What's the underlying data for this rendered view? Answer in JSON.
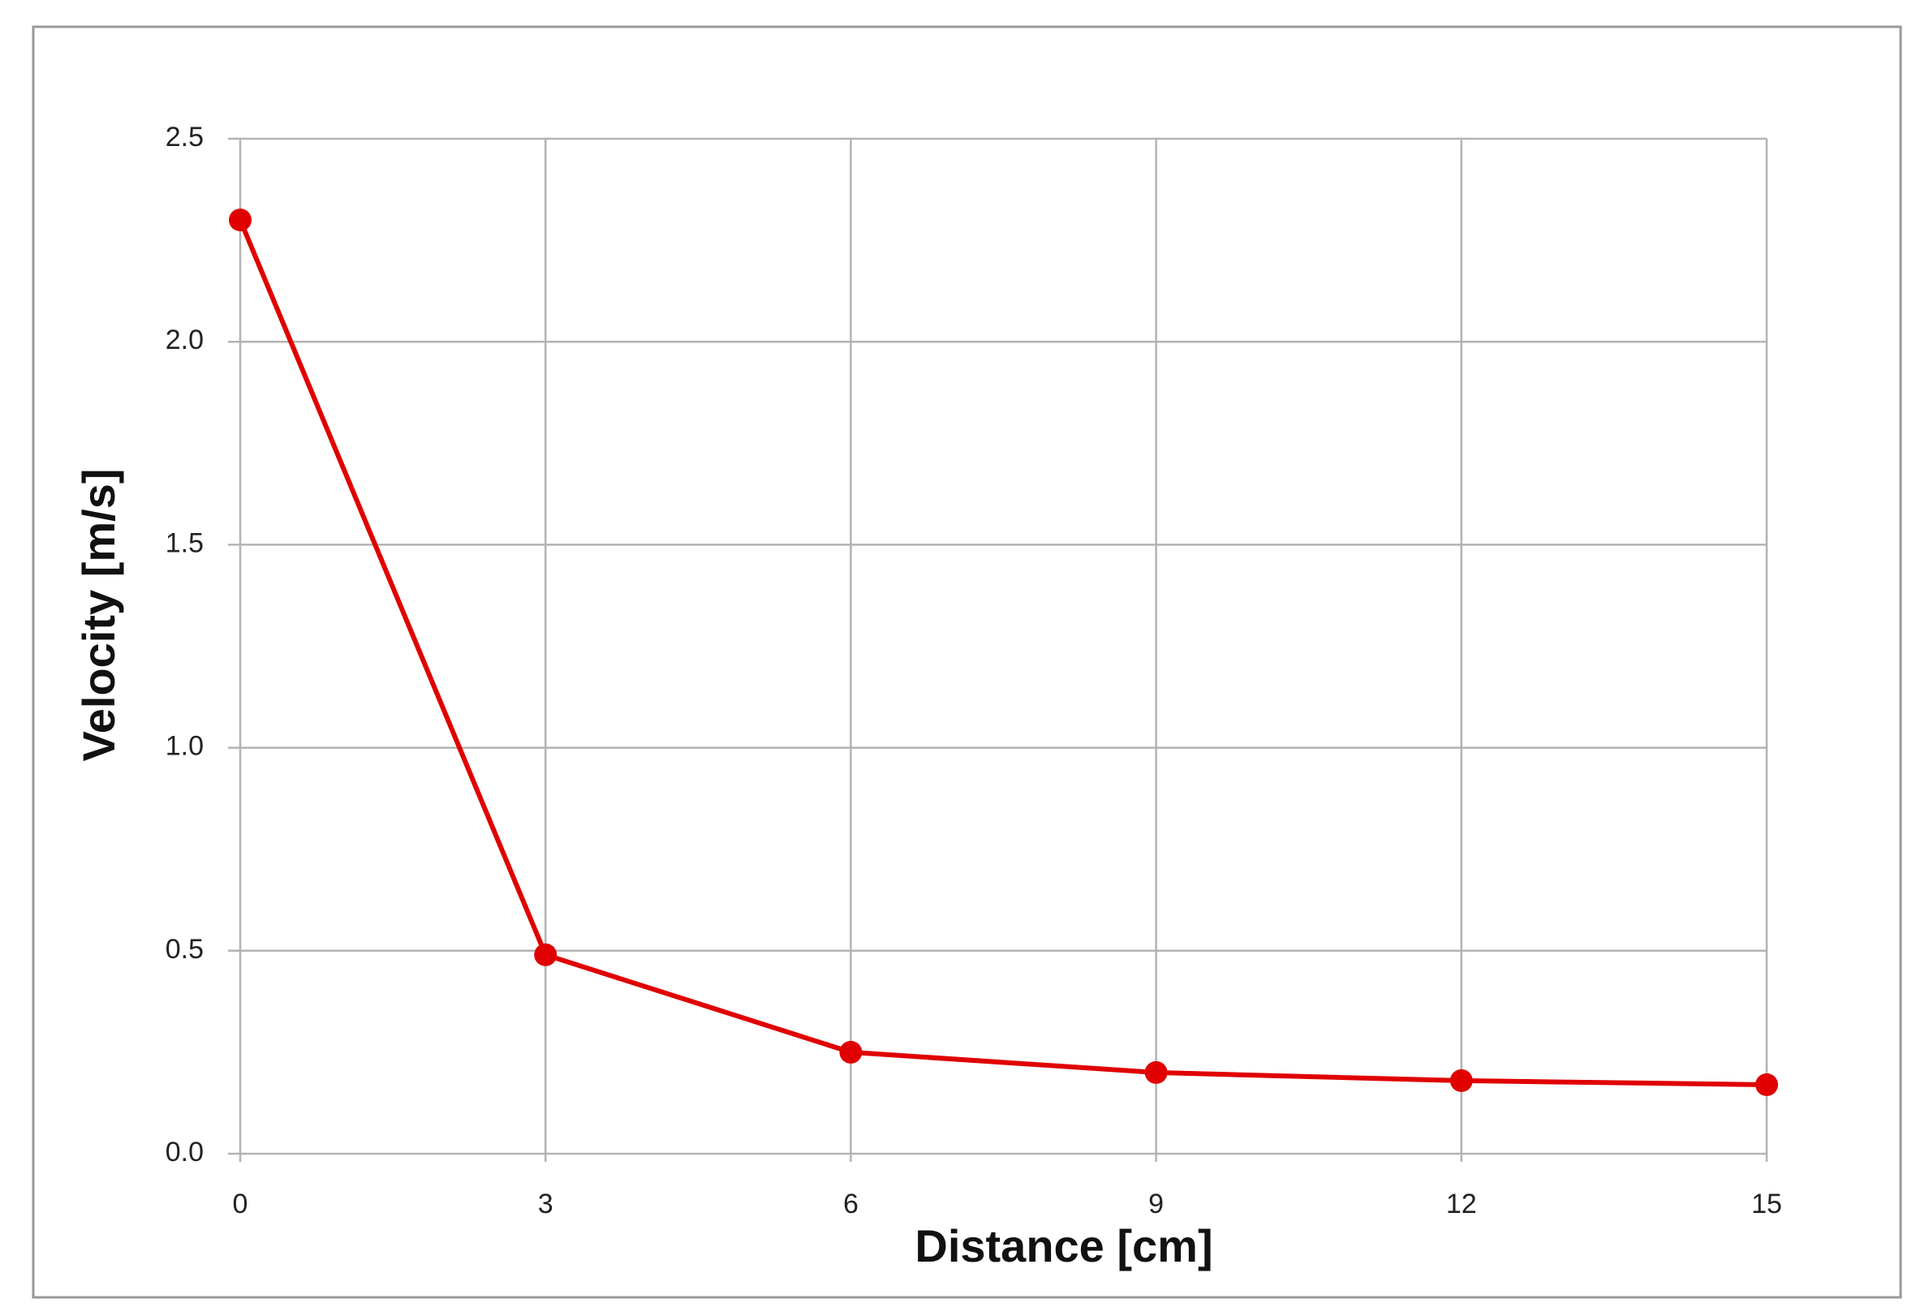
{
  "chart_data": {
    "type": "line",
    "x_label": "Distance [cm]",
    "y_label": "Velocity [m/s]",
    "x": [
      0,
      3,
      6,
      9,
      12,
      15
    ],
    "series": [
      {
        "name": "Velocity",
        "color": "#e00000",
        "values": [
          2.3,
          0.49,
          0.25,
          0.2,
          0.18,
          0.17
        ]
      }
    ],
    "xlim": [
      0,
      15
    ],
    "xticks": [
      0,
      3,
      6,
      9,
      12,
      15
    ],
    "ylim": [
      0,
      2.5
    ],
    "yticks": [
      {
        "value": 0,
        "label": "0.0"
      },
      {
        "value": 0.5,
        "label": "0.5"
      },
      {
        "value": 1,
        "label": "1.0"
      },
      {
        "value": 1.5,
        "label": "1.5"
      },
      {
        "value": 2,
        "label": "2.0"
      },
      2.5
    ],
    "grid": true,
    "markers": true
  }
}
